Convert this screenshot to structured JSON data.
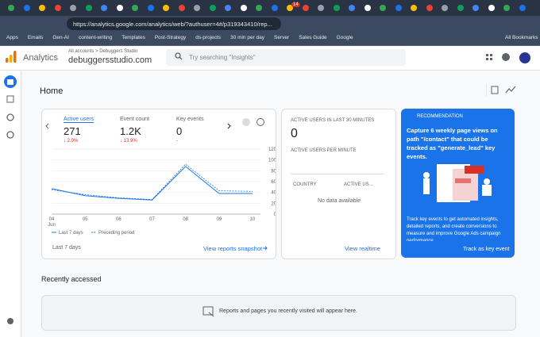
{
  "browser": {
    "tab_badge": "14",
    "url": "https://analytics.google.com/analytics/web/?authuser=4#/p319343410/rep...",
    "bookmarks": [
      "Apps",
      "Emails",
      "Gen-AI",
      "content-writing",
      "Templates",
      "Post-Strategy",
      "ds-projects",
      "30 min per day",
      "Server",
      "Sales Guide",
      "Google"
    ],
    "all_bookmarks": "All Bookmarks"
  },
  "header": {
    "product": "Analytics",
    "breadcrumb": "All accounts > Debuggers Studio",
    "property": "debuggersstudio.com",
    "search_placeholder": "Try searching \"Insights\""
  },
  "home": {
    "title": "Home",
    "metrics": [
      {
        "label": "Active users",
        "value": "271",
        "change": "↓ 2.9%"
      },
      {
        "label": "Event count",
        "value": "1.2K",
        "change": "↓ 13.9%"
      },
      {
        "label": "Key events",
        "value": "0",
        "change": "-"
      }
    ],
    "chart": {
      "type": "line",
      "categories": [
        "04",
        "05",
        "06",
        "07",
        "08",
        "09",
        "10"
      ],
      "month": "Jun",
      "series": [
        {
          "name": "Last 7 days",
          "color": "#1a73e8",
          "dashed": false,
          "values": [
            47,
            34,
            29,
            26,
            88,
            38,
            38
          ]
        },
        {
          "name": "Preceding period",
          "color": "#1a73e8",
          "dashed": true,
          "values": [
            45,
            36,
            30,
            27,
            92,
            43,
            42
          ]
        }
      ],
      "ylim": [
        0,
        120
      ],
      "yticks": [
        0,
        20,
        40,
        60,
        80,
        100,
        120
      ],
      "grid": true
    },
    "range": "Last 7 days",
    "snapshot_link": "View reports snapshot",
    "realtime": {
      "title": "ACTIVE USERS IN LAST 30 MINUTES",
      "value": "0",
      "per_minute": "ACTIVE USERS PER MINUTE",
      "col1": "COUNTRY",
      "col2": "ACTIVE US...",
      "empty": "No data available",
      "link": "View realtime"
    },
    "recommendation": {
      "label": "RECOMMENDATION",
      "headline": "Capture 6 weekly page views on path \"/contact\" that could be tracked as \"generate_lead\" key events.",
      "body": "Track key events to get automated insights, detailed reports, and create conversions to measure and improve Google Ads campaign performance.",
      "action": "Track as key event"
    },
    "recent_title": "Recently accessed",
    "recent_empty": "Reports and pages you recently visited will appear here."
  }
}
